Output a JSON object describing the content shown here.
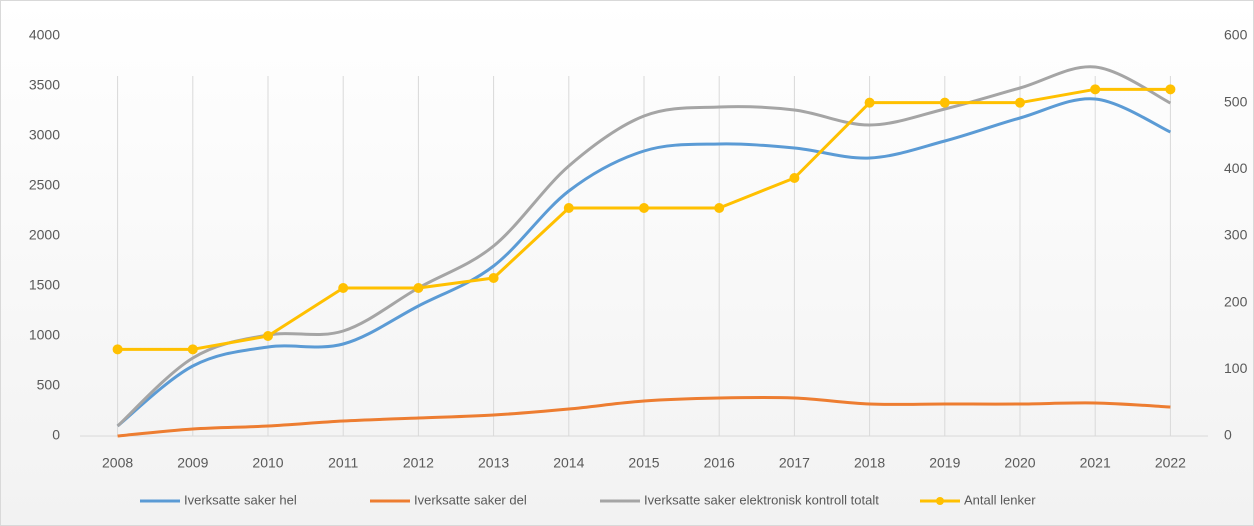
{
  "chart_data": {
    "type": "line",
    "categories": [
      "2008",
      "2009",
      "2010",
      "2011",
      "2012",
      "2013",
      "2014",
      "2015",
      "2016",
      "2017",
      "2018",
      "2019",
      "2020",
      "2021",
      "2022"
    ],
    "series": [
      {
        "name": "Iverksatte saker hel",
        "color": "#5b9bd5",
        "smooth": true,
        "values": [
          100,
          700,
          890,
          920,
          1300,
          1700,
          2450,
          2850,
          2920,
          2880,
          2780,
          2950,
          3180,
          3370,
          3040
        ]
      },
      {
        "name": "Iverksatte saker del",
        "color": "#ed7d31",
        "smooth": true,
        "values": [
          0,
          70,
          100,
          150,
          180,
          210,
          270,
          350,
          380,
          380,
          320,
          320,
          320,
          330,
          290
        ]
      },
      {
        "name": "Iverksatte saker elektronisk kontroll totalt",
        "color": "#a5a5a5",
        "smooth": true,
        "values": [
          100,
          780,
          1010,
          1050,
          1480,
          1900,
          2700,
          3200,
          3290,
          3260,
          3110,
          3270,
          3480,
          3690,
          3330
        ]
      },
      {
        "name": "Antall lenker",
        "color": "#ffc000",
        "axis": "y2",
        "markers": true,
        "values": [
          130,
          130,
          150,
          222,
          222,
          237,
          342,
          342,
          342,
          387,
          500,
          500,
          500,
          520,
          520
        ]
      }
    ],
    "ylim": [
      0,
      4000
    ],
    "yticks": [
      0,
      500,
      1000,
      1500,
      2000,
      2500,
      3000,
      3500,
      4000
    ],
    "y2lim": [
      0,
      600
    ],
    "y2ticks": [
      0,
      100,
      200,
      300,
      400,
      500,
      600
    ],
    "grid": "vertical",
    "legend": "bottom"
  }
}
